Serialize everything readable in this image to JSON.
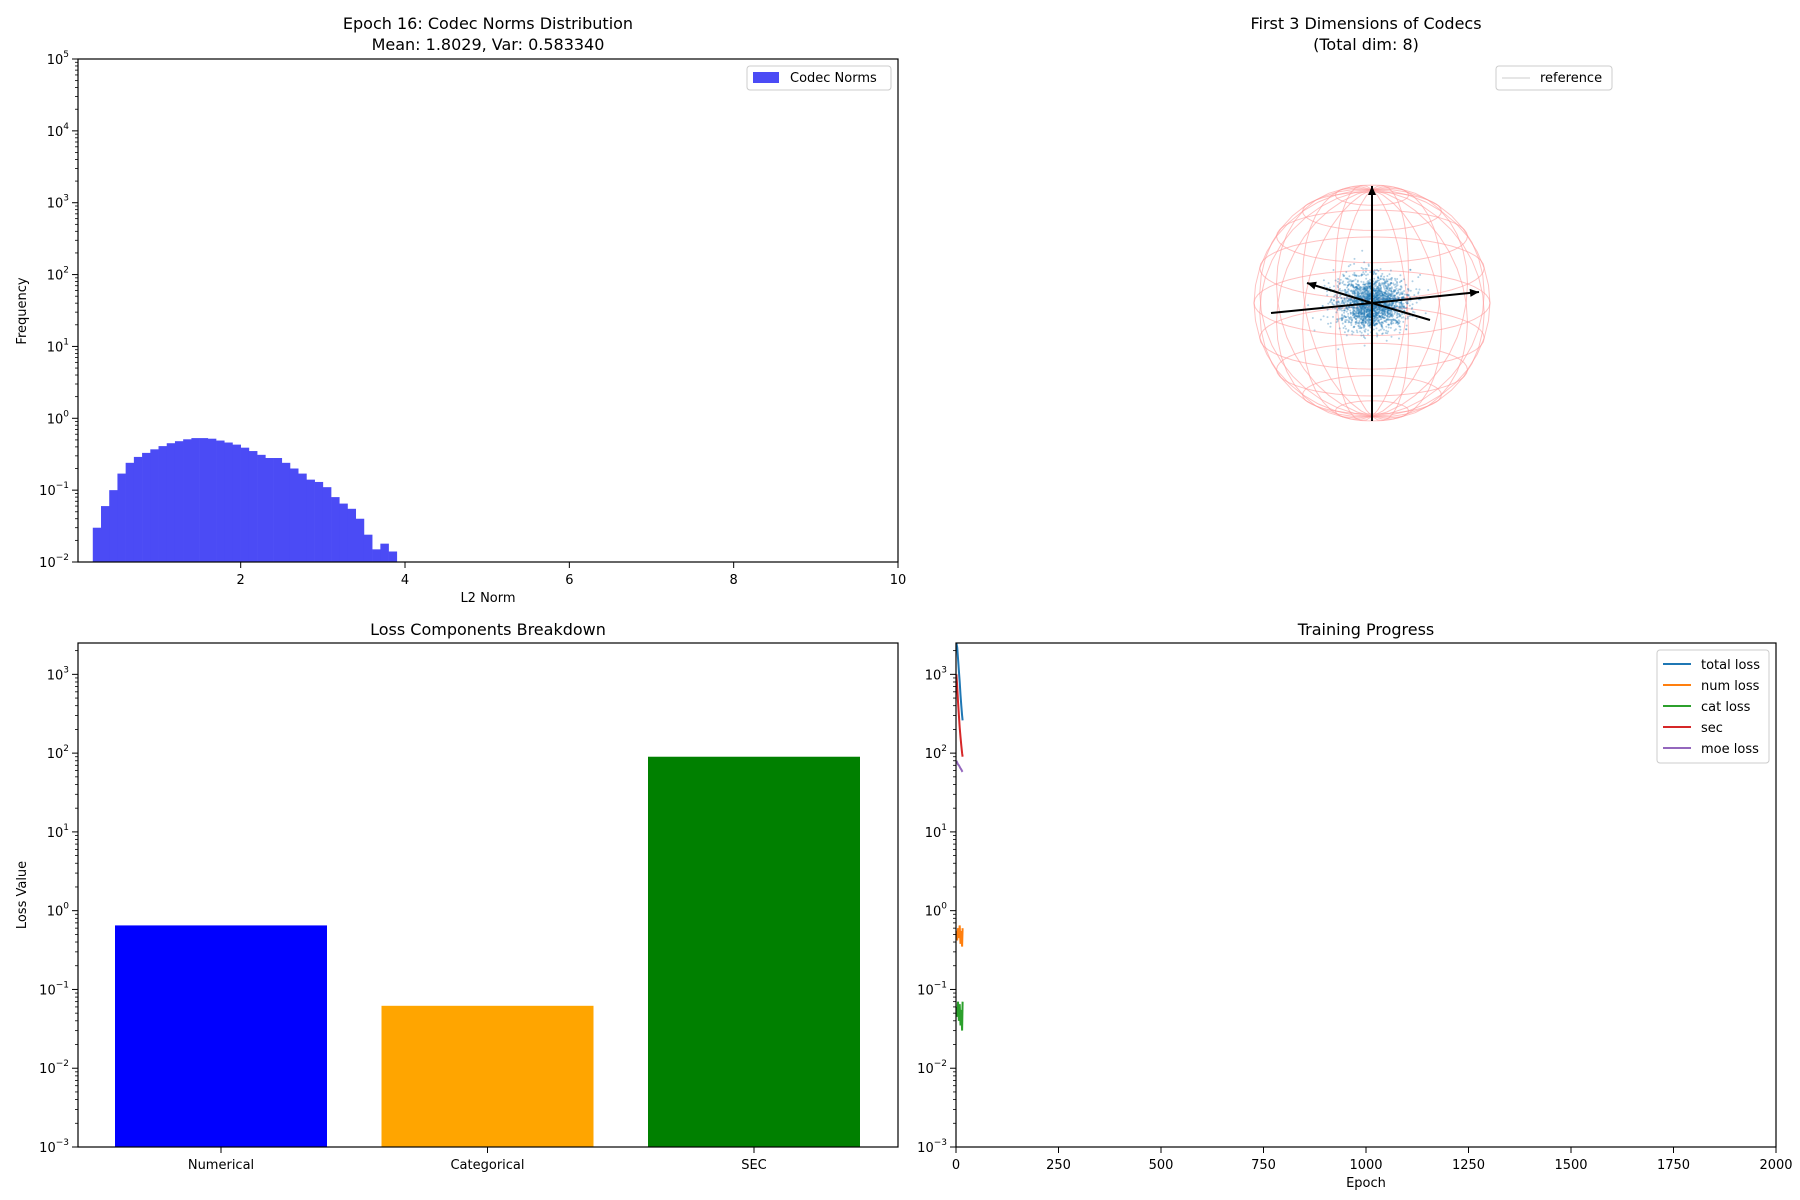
{
  "chart_data": [
    {
      "type": "bar",
      "title": "Epoch 16: Codec Norms Distribution",
      "subtitle": "Mean: 1.8029, Var: 0.583340",
      "xlabel": "L2 Norm",
      "ylabel": "Frequency",
      "xlim": [
        0.02,
        10
      ],
      "ylim": [
        0.01,
        100000
      ],
      "yscale": "log",
      "xticks": [
        2,
        4,
        6,
        8,
        10
      ],
      "yticks_exp": [
        -2,
        -1,
        0,
        1,
        2,
        3,
        4,
        5
      ],
      "legend": [
        "Codec Norms"
      ],
      "legend_position": "top-right",
      "color": "#4b4bf5",
      "bin_start": 0.2,
      "bin_width": 0.1,
      "values": [
        0.03,
        0.06,
        0.1,
        0.17,
        0.24,
        0.29,
        0.33,
        0.37,
        0.41,
        0.45,
        0.48,
        0.51,
        0.53,
        0.53,
        0.52,
        0.49,
        0.46,
        0.43,
        0.39,
        0.35,
        0.31,
        0.28,
        0.28,
        0.24,
        0.2,
        0.17,
        0.14,
        0.13,
        0.11,
        0.08,
        0.065,
        0.055,
        0.04,
        0.024,
        0.015,
        0.018,
        0.014
      ]
    },
    {
      "type": "scatter",
      "title": "First 3 Dimensions of Codecs",
      "subtitle": "(Total dim: 8)",
      "legend": [
        "reference"
      ],
      "legend_position": "top-right",
      "sphere_color": "#ff9999",
      "point_color": "#1f77b4",
      "note": ""
    },
    {
      "type": "bar",
      "title": "Loss Components Breakdown",
      "xlabel": "",
      "ylabel": "Loss Value",
      "yscale": "log",
      "ylim": [
        0.001,
        2500
      ],
      "yticks_exp": [
        -3,
        -2,
        -1,
        0,
        1,
        2,
        3
      ],
      "categories": [
        "Numerical",
        "Categorical",
        "SEC"
      ],
      "values": [
        0.65,
        0.062,
        90
      ],
      "colors": [
        "#0000ff",
        "#ffa500",
        "#008000"
      ]
    },
    {
      "type": "line",
      "title": "Training Progress",
      "xlabel": "Epoch",
      "ylabel": "",
      "yscale": "log",
      "xlim": [
        0,
        2000
      ],
      "ylim": [
        0.001,
        2500
      ],
      "xticks": [
        0,
        250,
        500,
        750,
        1000,
        1250,
        1500,
        1750,
        2000
      ],
      "yticks_exp": [
        -3,
        -2,
        -1,
        0,
        1,
        2,
        3
      ],
      "legend_position": "top-right",
      "series": [
        {
          "name": "total loss",
          "color": "#1f77b4",
          "x": [
            1,
            3,
            5,
            7,
            9,
            11,
            13,
            15,
            16
          ],
          "y": [
            2500,
            2200,
            1600,
            1100,
            800,
            550,
            400,
            300,
            260
          ]
        },
        {
          "name": "num loss",
          "color": "#ff7f0e",
          "x": [
            1,
            3,
            5,
            7,
            9,
            11,
            13,
            15,
            16
          ],
          "y": [
            0.55,
            0.42,
            0.6,
            0.45,
            0.65,
            0.38,
            0.55,
            0.35,
            0.6
          ]
        },
        {
          "name": "cat loss",
          "color": "#2ca02c",
          "x": [
            1,
            3,
            5,
            7,
            9,
            11,
            13,
            15,
            16
          ],
          "y": [
            0.06,
            0.045,
            0.07,
            0.04,
            0.065,
            0.035,
            0.055,
            0.03,
            0.07
          ]
        },
        {
          "name": "sec",
          "color": "#d62728",
          "x": [
            1,
            3,
            5,
            7,
            9,
            11,
            13,
            15,
            16
          ],
          "y": [
            1000,
            700,
            450,
            300,
            210,
            160,
            125,
            100,
            90
          ]
        },
        {
          "name": "moe loss",
          "color": "#9467bd",
          "x": [
            1,
            3,
            5,
            7,
            9,
            11,
            13,
            15,
            16
          ],
          "y": [
            80,
            76,
            72,
            70,
            67,
            64,
            62,
            59,
            58
          ]
        }
      ]
    }
  ]
}
